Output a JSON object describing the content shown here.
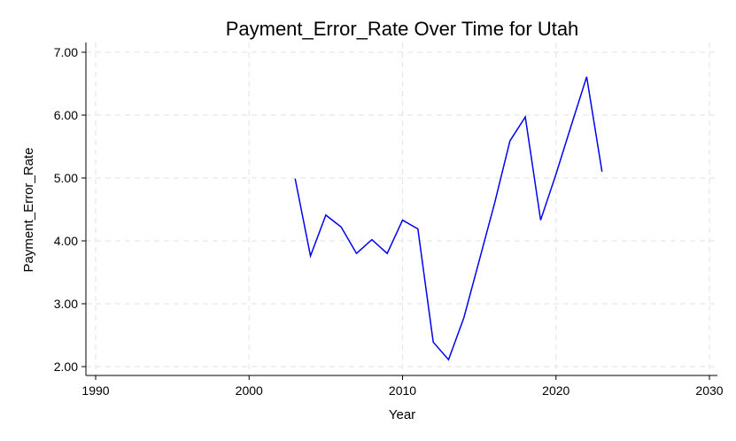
{
  "chart_data": {
    "type": "line",
    "title": "Payment_Error_Rate Over Time for Utah",
    "xlabel": "Year",
    "ylabel": "Payment_Error_Rate",
    "xlim": [
      1990,
      2030
    ],
    "ylim": [
      2.0,
      7.0
    ],
    "x_ticks": [
      "1990",
      "2000",
      "2010",
      "2020",
      "2030"
    ],
    "y_ticks": [
      "2.00",
      "3.00",
      "4.00",
      "5.00",
      "6.00",
      "7.00"
    ],
    "grid": true,
    "series_color": "#0000ee",
    "x": [
      2003,
      2004,
      2005,
      2006,
      2007,
      2008,
      2009,
      2010,
      2011,
      2012,
      2013,
      2014,
      2015,
      2016,
      2017,
      2018,
      2019,
      2020,
      2021,
      2022,
      2023
    ],
    "series": [
      {
        "values": [
          4.99,
          3.76,
          4.41,
          4.22,
          3.8,
          4.02,
          3.8,
          4.33,
          4.19,
          2.39,
          2.11,
          2.78,
          3.69,
          4.6,
          5.59,
          5.97,
          4.33,
          5.06,
          5.84,
          6.61,
          5.1
        ]
      }
    ]
  }
}
